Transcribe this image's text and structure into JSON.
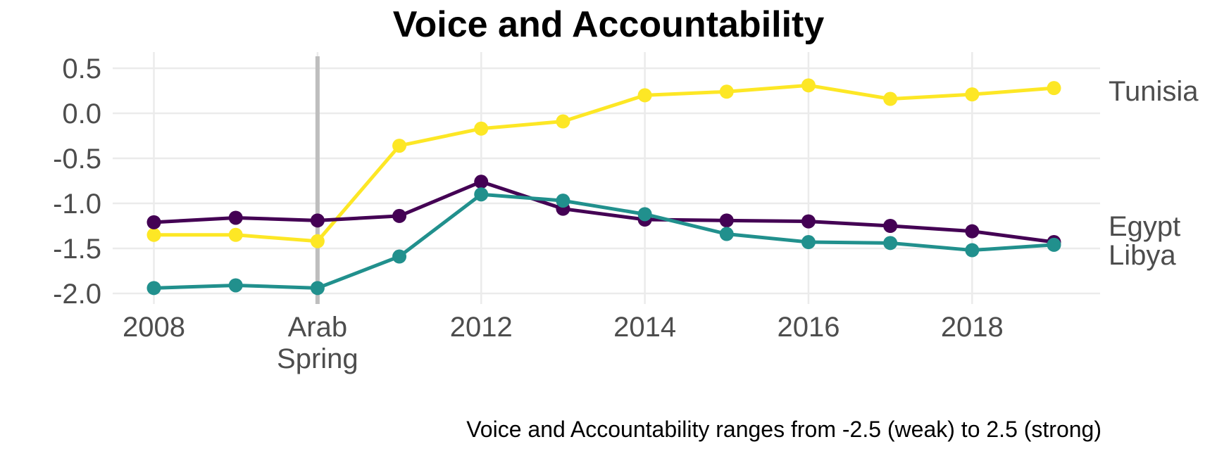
{
  "chart_data": {
    "type": "line",
    "title": "Voice and Accountability",
    "caption": "Voice and Accountability ranges from -2.5 (weak) to 2.5 (strong)",
    "xlabel": "",
    "ylabel": "",
    "x": [
      2008,
      2009,
      2010,
      2011,
      2012,
      2013,
      2014,
      2015,
      2016,
      2017,
      2018,
      2019
    ],
    "xlim": [
      2008,
      2019
    ],
    "ylim": [
      -2.0,
      0.5
    ],
    "x_ticks": [
      {
        "value": 2008,
        "label": "2008"
      },
      {
        "value": 2010,
        "label": "Arab\nSpring"
      },
      {
        "value": 2012,
        "label": "2012"
      },
      {
        "value": 2014,
        "label": "2014"
      },
      {
        "value": 2016,
        "label": "2016"
      },
      {
        "value": 2018,
        "label": "2018"
      }
    ],
    "y_ticks": [
      {
        "value": 0.5,
        "label": "0.5"
      },
      {
        "value": 0.0,
        "label": "0.0"
      },
      {
        "value": -0.5,
        "label": "-0.5"
      },
      {
        "value": -1.0,
        "label": "-1.0"
      },
      {
        "value": -1.5,
        "label": "-1.5"
      },
      {
        "value": -2.0,
        "label": "-2.0"
      }
    ],
    "event_line_x": 2010,
    "grid": true,
    "legend": "direct labels at line ends",
    "series": [
      {
        "name": "Tunisia",
        "color": "#fde725",
        "values": [
          -1.35,
          -1.35,
          -1.42,
          -0.36,
          -0.17,
          -0.09,
          0.2,
          0.24,
          0.31,
          0.16,
          0.21,
          0.28
        ]
      },
      {
        "name": "Egypt",
        "color": "#440154",
        "values": [
          -1.21,
          -1.16,
          -1.19,
          -1.14,
          -0.76,
          -1.06,
          -1.18,
          -1.19,
          -1.2,
          -1.25,
          -1.31,
          -1.43
        ]
      },
      {
        "name": "Libya",
        "color": "#21908d",
        "values": [
          -1.94,
          -1.91,
          -1.94,
          -1.59,
          -0.9,
          -0.97,
          -1.12,
          -1.34,
          -1.43,
          -1.44,
          -1.52,
          -1.46
        ]
      }
    ]
  }
}
